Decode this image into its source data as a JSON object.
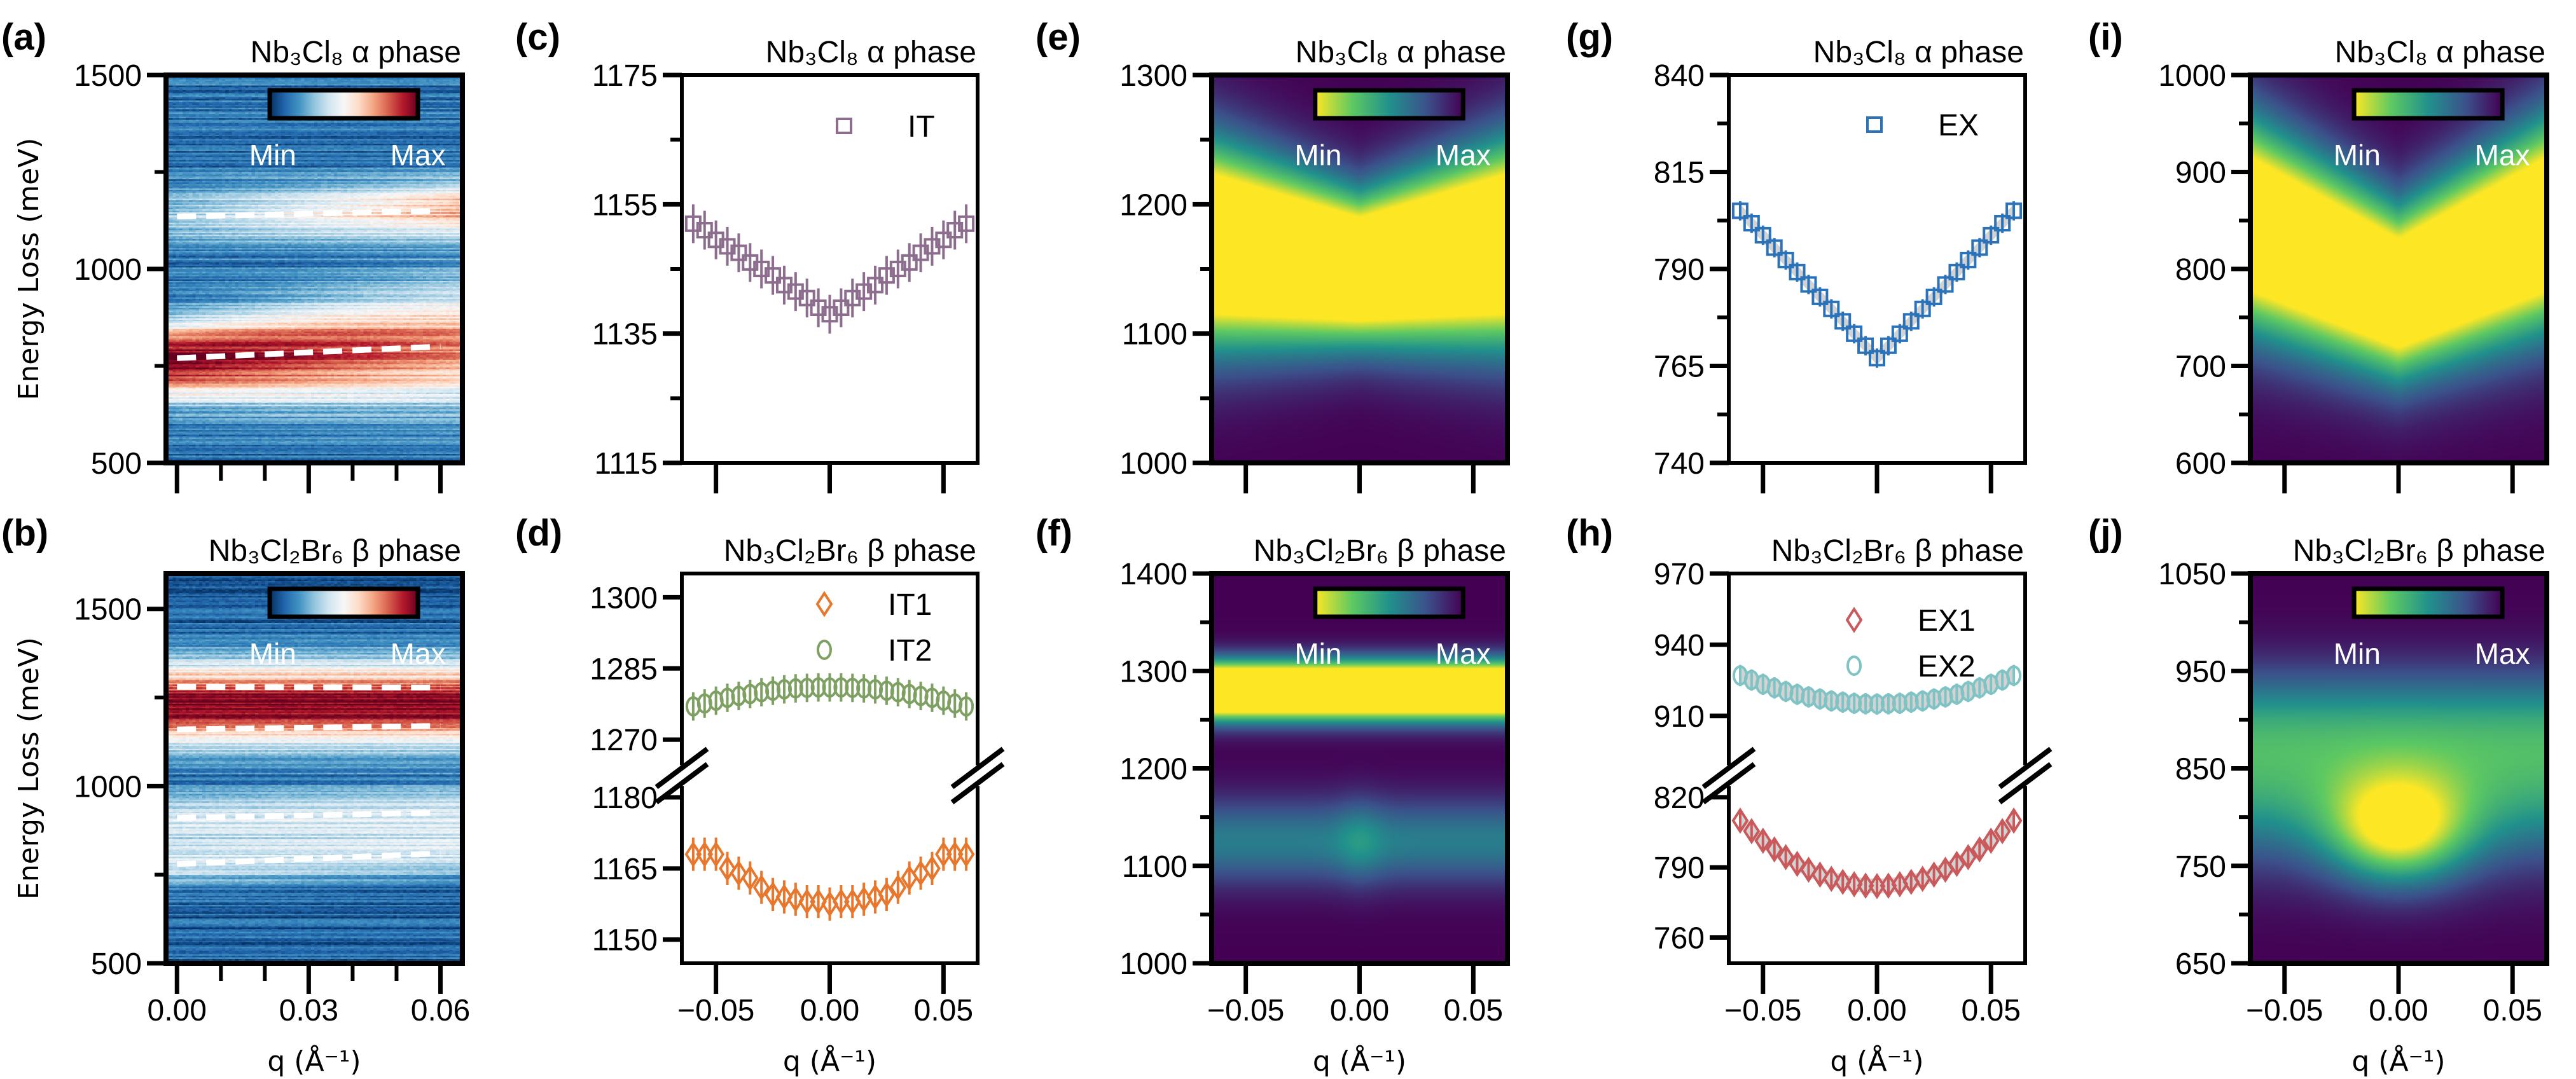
{
  "chart_data": [
    {
      "panel": "(a)",
      "type": "heatmap",
      "title": "Nb₃Cl₈ α phase",
      "ylabel": "Energy Loss (meV)",
      "xlim": [
        -0.0025,
        0.065
      ],
      "ylim": [
        500,
        1500
      ],
      "yticks": [
        500,
        1000,
        1500
      ],
      "yminor": [
        750,
        1250
      ],
      "xticks": [
        0,
        0.03,
        0.06
      ],
      "xminor": [
        0.01,
        0.02,
        0.04,
        0.05
      ],
      "colormap": "RdBu_r",
      "colorbar": {
        "min_label": "Min",
        "max_label": "Max"
      },
      "dispersion_lines": [
        {
          "q": [
            0,
            0.06
          ],
          "E": [
            1135,
            1150
          ]
        },
        {
          "q": [
            0,
            0.06
          ],
          "E": [
            770,
            800
          ]
        }
      ]
    },
    {
      "panel": "(b)",
      "type": "heatmap",
      "title": "Nb₃Cl₂Br₆ β phase",
      "ylabel": "Energy Loss (meV)",
      "xlabel": "q (Å⁻¹)",
      "xlim": [
        -0.0025,
        0.065
      ],
      "ylim": [
        500,
        1600
      ],
      "yticks": [
        500,
        1000,
        1500
      ],
      "yminor": [
        750,
        1250
      ],
      "xticks": [
        0,
        0.03,
        0.06
      ],
      "xticklabels": [
        "0.00",
        "0.03",
        "0.06"
      ],
      "xminor": [
        0.01,
        0.02,
        0.04,
        0.05
      ],
      "colormap": "RdBu_r",
      "colorbar": {
        "min_label": "Min",
        "max_label": "Max"
      },
      "dispersion_lines": [
        {
          "q": [
            0,
            0.06
          ],
          "E": [
            1280,
            1278
          ]
        },
        {
          "q": [
            0,
            0.06
          ],
          "E": [
            1160,
            1170
          ]
        },
        {
          "q": [
            0,
            0.06
          ],
          "E": [
            910,
            925
          ]
        },
        {
          "q": [
            0,
            0.06
          ],
          "E": [
            780,
            810
          ]
        }
      ]
    },
    {
      "panel": "(c)",
      "type": "scatter",
      "title": "Nb₃Cl₈ α phase",
      "xlim": [
        -0.065,
        0.065
      ],
      "ylim": [
        1115,
        1175
      ],
      "yticks": [
        1115,
        1135,
        1155,
        1175
      ],
      "yminor": [
        1125,
        1145,
        1165
      ],
      "xticks": [
        -0.05,
        0,
        0.05
      ],
      "x": [
        -0.06,
        -0.055,
        -0.05,
        -0.045,
        -0.04,
        -0.035,
        -0.03,
        -0.025,
        -0.02,
        -0.015,
        -0.01,
        -0.005,
        0,
        0.005,
        0.01,
        0.015,
        0.02,
        0.025,
        0.03,
        0.035,
        0.04,
        0.045,
        0.05,
        0.055,
        0.06
      ],
      "series": [
        {
          "name": "IT",
          "marker": "square",
          "color": "#8c6d8e",
          "err": 3,
          "values": [
            1152,
            1151,
            1149.5,
            1148.5,
            1147.5,
            1146,
            1145,
            1144,
            1142.5,
            1141.5,
            1140.5,
            1139,
            1138,
            1139,
            1140.5,
            1141.5,
            1142.5,
            1144,
            1145,
            1146,
            1147.5,
            1148.5,
            1149.5,
            1151,
            1152
          ]
        }
      ]
    },
    {
      "panel": "(d)",
      "type": "scatter",
      "title": "Nb₃Cl₂Br₆ β phase",
      "xlabel": "q (Å⁻¹)",
      "xlim": [
        -0.065,
        0.065
      ],
      "broken_y": [
        [
          1265,
          1305
        ],
        [
          1145,
          1182
        ]
      ],
      "yticks": [
        1150,
        1165,
        1180,
        1270,
        1285,
        1300
      ],
      "xticks": [
        -0.05,
        0,
        0.05
      ],
      "xticklabels": [
        "−0.05",
        "0.00",
        "0.05"
      ],
      "x": [
        -0.06,
        -0.055,
        -0.05,
        -0.045,
        -0.04,
        -0.035,
        -0.03,
        -0.025,
        -0.02,
        -0.015,
        -0.01,
        -0.005,
        0,
        0.005,
        0.01,
        0.015,
        0.02,
        0.025,
        0.03,
        0.035,
        0.04,
        0.045,
        0.05,
        0.055,
        0.06
      ],
      "series": [
        {
          "name": "IT1",
          "marker": "diamond",
          "color": "#e8772e",
          "err": 3.5,
          "values": [
            1168,
            1168,
            1168,
            1165,
            1164,
            1163,
            1161,
            1159.5,
            1159,
            1158.5,
            1158,
            1158,
            1157.5,
            1158,
            1158,
            1158.5,
            1159,
            1159.5,
            1161,
            1163,
            1164,
            1165,
            1168,
            1168,
            1168
          ]
        },
        {
          "name": "IT2",
          "marker": "circle",
          "color": "#7ea063",
          "err": 3,
          "values": [
            1277,
            1277.6,
            1278.2,
            1278.8,
            1279.2,
            1279.6,
            1280,
            1280.3,
            1280.6,
            1280.8,
            1280.9,
            1281,
            1281,
            1281,
            1280.9,
            1280.8,
            1280.6,
            1280.3,
            1280,
            1279.6,
            1279.2,
            1278.8,
            1278.2,
            1277.6,
            1277
          ]
        }
      ]
    },
    {
      "panel": "(e)",
      "type": "heatmap",
      "title": "Nb₃Cl₈ α phase",
      "xlim": [
        -0.065,
        0.065
      ],
      "ylim": [
        1000,
        1300
      ],
      "yticks": [
        1000,
        1100,
        1200,
        1300
      ],
      "yminor": [
        1050,
        1150,
        1250
      ],
      "xticks": [
        -0.05,
        0,
        0.05
      ],
      "colormap": "viridis",
      "colorbar": {
        "min_label": "Min",
        "max_label": "Max"
      }
    },
    {
      "panel": "(f)",
      "type": "heatmap",
      "title": "Nb₃Cl₂Br₆ β phase",
      "xlabel": "q (Å⁻¹)",
      "xlim": [
        -0.065,
        0.065
      ],
      "ylim": [
        1000,
        1400
      ],
      "yticks": [
        1000,
        1100,
        1200,
        1300,
        1400
      ],
      "yminor": [
        1050,
        1150,
        1250,
        1350
      ],
      "xticks": [
        -0.05,
        0,
        0.05
      ],
      "xticklabels": [
        "−0.05",
        "0.00",
        "0.05"
      ],
      "colormap": "viridis",
      "colorbar": {
        "min_label": "Min",
        "max_label": "Max"
      }
    },
    {
      "panel": "(g)",
      "type": "scatter",
      "title": "Nb₃Cl₈ α phase",
      "xlim": [
        -0.065,
        0.065
      ],
      "ylim": [
        740,
        840
      ],
      "yticks": [
        740,
        765,
        790,
        815,
        840
      ],
      "yminor": [
        752.5,
        777.5,
        802.5,
        827.5
      ],
      "xticks": [
        -0.05,
        0,
        0.05
      ],
      "x": [
        -0.06,
        -0.055,
        -0.05,
        -0.045,
        -0.04,
        -0.035,
        -0.03,
        -0.025,
        -0.02,
        -0.015,
        -0.01,
        -0.005,
        0,
        0.005,
        0.01,
        0.015,
        0.02,
        0.025,
        0.03,
        0.035,
        0.04,
        0.045,
        0.05,
        0.055,
        0.06
      ],
      "series": [
        {
          "name": "EX",
          "marker": "square",
          "color": "#2b72b8",
          "err": 2.5,
          "band": true,
          "values": [
            805,
            801.8,
            798.7,
            795.5,
            792.3,
            789.2,
            786,
            782.8,
            779.7,
            776.5,
            773.3,
            770.2,
            767,
            770.2,
            773.3,
            776.5,
            779.7,
            782.8,
            786,
            789.2,
            792.3,
            795.5,
            798.7,
            801.8,
            805
          ]
        }
      ]
    },
    {
      "panel": "(h)",
      "type": "scatter",
      "title": "Nb₃Cl₂Br₆ β phase",
      "xlabel": "q (Å⁻¹)",
      "xlim": [
        -0.065,
        0.065
      ],
      "broken_y": [
        [
          890,
          970
        ],
        [
          749,
          824
        ]
      ],
      "yticks": [
        760,
        790,
        820,
        910,
        940,
        970
      ],
      "xticks": [
        -0.05,
        0,
        0.05
      ],
      "xticklabels": [
        "−0.05",
        "0.00",
        "0.05"
      ],
      "x": [
        -0.06,
        -0.055,
        -0.05,
        -0.045,
        -0.04,
        -0.035,
        -0.03,
        -0.025,
        -0.02,
        -0.015,
        -0.01,
        -0.005,
        0,
        0.005,
        0.01,
        0.015,
        0.02,
        0.025,
        0.03,
        0.035,
        0.04,
        0.045,
        0.05,
        0.055,
        0.06
      ],
      "series": [
        {
          "name": "EX1",
          "marker": "diamond",
          "color": "#c9595a",
          "err": 4.5,
          "band": true,
          "values": [
            810,
            805.5,
            801.4,
            797.7,
            794.4,
            791.5,
            789,
            786.9,
            785.1,
            783.8,
            782.8,
            782.2,
            782,
            782.2,
            782.8,
            783.8,
            785.1,
            786.9,
            789,
            791.5,
            794.4,
            797.7,
            801.4,
            805.5,
            810
          ]
        },
        {
          "name": "EX2",
          "marker": "circle",
          "color": "#7fc3c5",
          "err": 4.5,
          "band": true,
          "values": [
            927,
            925.1,
            923.3,
            921.8,
            920.3,
            919.1,
            918,
            917.1,
            916.3,
            915.8,
            915.3,
            915.1,
            915,
            915.1,
            915.3,
            915.8,
            916.3,
            917.1,
            918,
            919.1,
            920.3,
            921.8,
            923.3,
            925.1,
            927
          ]
        }
      ]
    },
    {
      "panel": "(i)",
      "type": "heatmap",
      "title": "Nb₃Cl₈ α phase",
      "xlim": [
        -0.065,
        0.065
      ],
      "ylim": [
        600,
        1000
      ],
      "yticks": [
        600,
        700,
        800,
        900,
        1000
      ],
      "yminor": [
        650,
        750,
        850,
        950
      ],
      "xticks": [
        -0.05,
        0,
        0.05
      ],
      "colormap": "viridis",
      "colorbar": {
        "min_label": "Min",
        "max_label": "Max"
      }
    },
    {
      "panel": "(j)",
      "type": "heatmap",
      "title": "Nb₃Cl₂Br₆ β phase",
      "xlabel": "q (Å⁻¹)",
      "xlim": [
        -0.065,
        0.065
      ],
      "ylim": [
        650,
        1050
      ],
      "yticks": [
        650,
        750,
        850,
        950,
        1050
      ],
      "yminor": [
        700,
        800,
        900,
        1000
      ],
      "xticks": [
        -0.05,
        0,
        0.05
      ],
      "xticklabels": [
        "−0.05",
        "0.00",
        "0.05"
      ],
      "colormap": "viridis",
      "colorbar": {
        "min_label": "Min",
        "max_label": "Max"
      }
    }
  ]
}
